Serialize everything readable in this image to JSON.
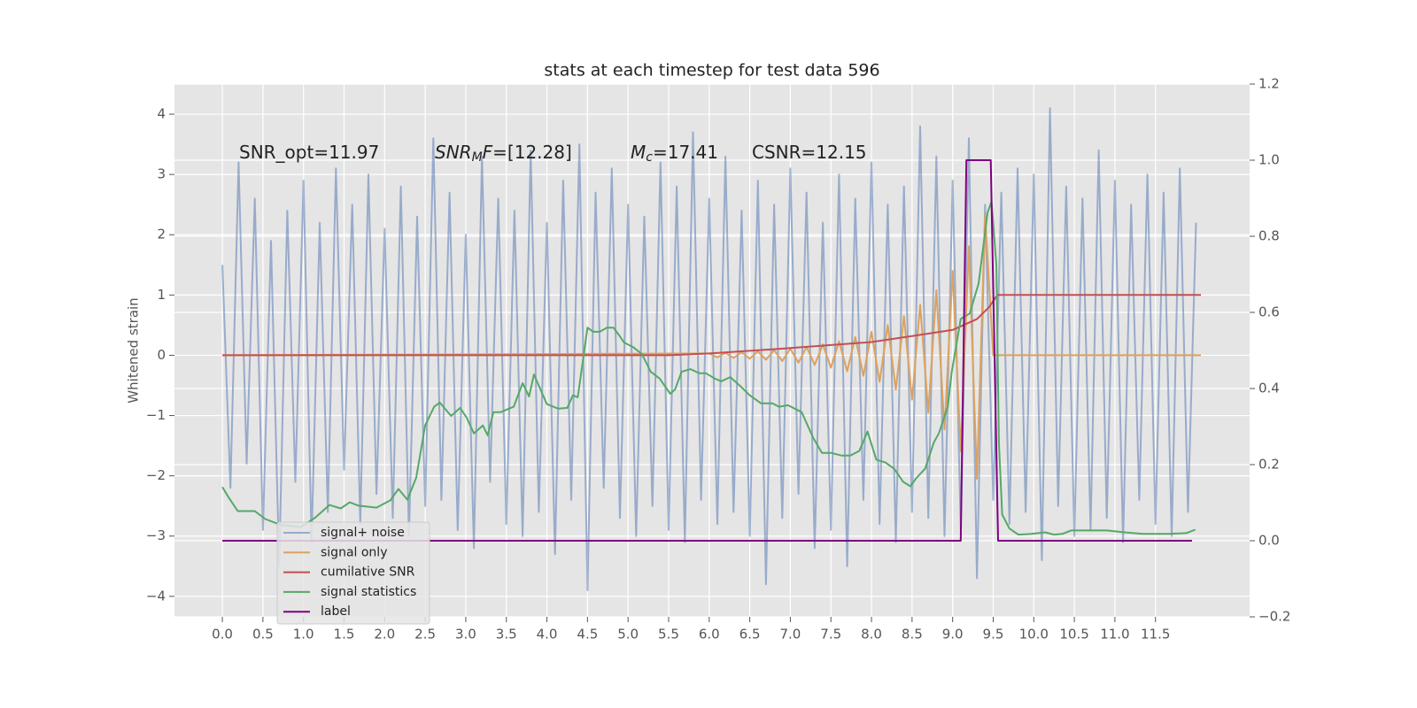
{
  "chart_data": {
    "type": "line",
    "title": "stats at each timestep for test data 596",
    "ylabel": "Whitened strain",
    "xlim": [
      -0.59,
      12.66
    ],
    "ylim": [
      -4.34,
      4.5
    ],
    "y2lim": [
      -0.2,
      1.2
    ],
    "grid": true,
    "background": "#e5e5e5",
    "legend": "lower left",
    "xticks": [
      {
        "value": 0,
        "label": "0.0"
      },
      0.5,
      {
        "value": 1,
        "label": "1.0"
      },
      1.5,
      {
        "value": 2,
        "label": "2.0"
      },
      2.5,
      {
        "value": 3,
        "label": "3.0"
      },
      3.5,
      {
        "value": 4,
        "label": "4.0"
      },
      4.5,
      {
        "value": 5,
        "label": "5.0"
      },
      5.5,
      {
        "value": 6,
        "label": "6.0"
      },
      6.5,
      {
        "value": 7,
        "label": "7.0"
      },
      7.5,
      {
        "value": 8,
        "label": "8.0"
      },
      8.5,
      {
        "value": 9,
        "label": "9.0"
      },
      9.5,
      {
        "value": 10,
        "label": "10.0"
      },
      10.5,
      {
        "value": 11,
        "label": "11.0"
      },
      11.5
    ],
    "yticks": [
      {
        "value": -4,
        "label": "−4"
      },
      {
        "value": -3,
        "label": "−3"
      },
      {
        "value": -2,
        "label": "−2"
      },
      {
        "value": -1,
        "label": "−1"
      },
      0,
      1,
      2,
      3,
      4
    ],
    "y2ticks": [
      {
        "value": -0.2,
        "label": "−0.2"
      },
      {
        "value": 0,
        "label": "0.0"
      },
      0.2,
      0.4,
      0.6,
      0.8,
      {
        "value": 1,
        "label": "1.0"
      },
      1.2
    ],
    "annotations": [
      {
        "parts": [
          {
            "text": "SNR_opt=11.97"
          }
        ]
      },
      {
        "parts": [
          {
            "text": "SNR",
            "style": "italic"
          },
          {
            "text": "M",
            "style": "sub"
          },
          {
            "text": "F",
            "style": "italic"
          },
          {
            "text": "=[12.28]"
          }
        ]
      },
      {
        "parts": [
          {
            "text": "M",
            "style": "italic"
          },
          {
            "text": "c",
            "style": "sub"
          },
          {
            "text": "=17.41"
          }
        ]
      },
      {
        "parts": [
          {
            "text": "CSNR=12.15"
          }
        ]
      }
    ],
    "series": [
      {
        "name": "signal+ noise",
        "color": "#4c72b0",
        "opacity": 0.5,
        "x": [
          0,
          0.1,
          0.2,
          0.3,
          0.4,
          0.5,
          0.6,
          0.7,
          0.8,
          0.9,
          1,
          1.1,
          1.2,
          1.3,
          1.4,
          1.5,
          1.6,
          1.7,
          1.8,
          1.9,
          2,
          2.1,
          2.2,
          2.3,
          2.4,
          2.5,
          2.6,
          2.7,
          2.8,
          2.9,
          3,
          3.1,
          3.2,
          3.3,
          3.4,
          3.5,
          3.6,
          3.7,
          3.8,
          3.9,
          4,
          4.1,
          4.2,
          4.3,
          4.4,
          4.5,
          4.6,
          4.7,
          4.8,
          4.9,
          5,
          5.1,
          5.2,
          5.3,
          5.4,
          5.5,
          5.6,
          5.7,
          5.8,
          5.9,
          6,
          6.1,
          6.2,
          6.3,
          6.4,
          6.5,
          6.6,
          6.7,
          6.8,
          6.9,
          7,
          7.1,
          7.2,
          7.3,
          7.4,
          7.5,
          7.6,
          7.7,
          7.8,
          7.9,
          8,
          8.1,
          8.2,
          8.3,
          8.4,
          8.5,
          8.6,
          8.7,
          8.8,
          8.9,
          9,
          9.1,
          9.2,
          9.3,
          9.4,
          9.5,
          9.6,
          9.7,
          9.8,
          9.9,
          10,
          10.1,
          10.2,
          10.3,
          10.4,
          10.5,
          10.6,
          10.7,
          10.8,
          10.9,
          11,
          11.1,
          11.2,
          11.3,
          11.4,
          11.5,
          11.6,
          11.7,
          11.8,
          11.9,
          12
        ],
        "values": [
          1.5,
          -2.2,
          3.2,
          -1.8,
          2.6,
          -2.9,
          1.9,
          -3.5,
          2.4,
          -2.1,
          2.9,
          -3.1,
          2.2,
          -2.6,
          3.1,
          -1.9,
          2.5,
          -2.8,
          3.0,
          -2.3,
          2.1,
          -2.7,
          2.8,
          -3.0,
          2.3,
          -2.5,
          3.6,
          -2.4,
          2.7,
          -2.9,
          2.0,
          -3.2,
          3.3,
          -2.1,
          2.6,
          -2.8,
          2.4,
          -3.0,
          3.4,
          -2.6,
          2.2,
          -3.3,
          2.9,
          -2.4,
          3.5,
          -3.9,
          2.7,
          -2.2,
          3.1,
          -2.7,
          2.5,
          -3.0,
          2.3,
          -2.5,
          3.2,
          -2.9,
          2.8,
          -3.1,
          3.7,
          -2.4,
          2.6,
          -2.8,
          3.3,
          -2.6,
          2.4,
          -3.0,
          2.9,
          -3.8,
          2.5,
          -2.7,
          3.1,
          -2.3,
          2.7,
          -3.2,
          2.2,
          -2.9,
          3.0,
          -3.5,
          2.6,
          -2.4,
          3.2,
          -2.8,
          2.5,
          -3.1,
          2.8,
          -2.6,
          3.8,
          -2.7,
          3.3,
          -3.0,
          2.9,
          -2.9,
          3.6,
          -3.7,
          2.5,
          -2.4,
          2.7,
          -2.8,
          3.1,
          -2.6,
          3.0,
          -3.4,
          4.1,
          -2.5,
          2.8,
          -3.0,
          2.6,
          -2.9,
          3.4,
          -2.7,
          2.9,
          -3.1,
          2.5,
          -2.4,
          3.0,
          -2.8,
          2.7,
          -3.0,
          3.1,
          -2.6,
          2.2
        ]
      },
      {
        "name": "signal only",
        "color": "#dda15e",
        "x": [
          0,
          6.0,
          6.1,
          6.2,
          6.3,
          6.4,
          6.5,
          6.6,
          6.7,
          6.8,
          6.9,
          7.0,
          7.1,
          7.2,
          7.3,
          7.4,
          7.5,
          7.6,
          7.7,
          7.8,
          7.9,
          8.0,
          8.1,
          8.2,
          8.3,
          8.4,
          8.5,
          8.6,
          8.7,
          8.8,
          8.9,
          9.0,
          9.1,
          9.2,
          9.3,
          9.4,
          9.5,
          12.06
        ],
        "values": [
          0,
          0.03,
          -0.034,
          0.039,
          -0.044,
          0.05,
          -0.057,
          0.065,
          -0.074,
          0.084,
          -0.095,
          0.108,
          -0.123,
          0.14,
          -0.159,
          0.18,
          -0.205,
          0.233,
          -0.265,
          0.301,
          -0.342,
          0.389,
          -0.442,
          0.502,
          -0.571,
          0.649,
          -0.737,
          0.838,
          -0.953,
          1.08,
          -1.23,
          1.4,
          -1.59,
          1.81,
          -2.05,
          2.33,
          0,
          0
        ]
      },
      {
        "name": "cumilative SNR",
        "color": "#c44e52",
        "x": [
          0,
          5.5,
          6.0,
          7.0,
          8.0,
          8.5,
          9.0,
          9.3,
          9.45,
          9.55,
          12.06
        ],
        "values": [
          0,
          0,
          0.03,
          0.12,
          0.22,
          0.32,
          0.42,
          0.6,
          0.8,
          1,
          1
        ]
      },
      {
        "name": "signal statistics",
        "color": "#55a868",
        "axis": "y2",
        "x": [
          0,
          0.08,
          0.19,
          0.4,
          0.53,
          0.73,
          0.97,
          1.14,
          1.32,
          1.46,
          1.57,
          1.68,
          1.9,
          2.07,
          2.17,
          2.28,
          2.39,
          2.5,
          2.61,
          2.68,
          2.82,
          2.93,
          3.01,
          3.1,
          3.21,
          3.27,
          3.34,
          3.43,
          3.59,
          3.7,
          3.78,
          3.84,
          4.0,
          4.14,
          4.25,
          4.32,
          4.38,
          4.5,
          4.57,
          4.65,
          4.74,
          4.82,
          4.9,
          4.95,
          5.06,
          5.17,
          5.28,
          5.39,
          5.52,
          5.58,
          5.66,
          5.77,
          5.88,
          5.96,
          6.07,
          6.15,
          6.26,
          6.38,
          6.5,
          6.64,
          6.78,
          6.86,
          6.97,
          7.14,
          7.28,
          7.39,
          7.5,
          7.63,
          7.74,
          7.85,
          7.95,
          8.06,
          8.17,
          8.28,
          8.39,
          8.48,
          8.55,
          8.66,
          8.77,
          8.83,
          8.94,
          8.99,
          9.1,
          9.21,
          9.32,
          9.43,
          9.48,
          9.54,
          9.57,
          9.61,
          9.7,
          9.81,
          9.97,
          10.14,
          10.25,
          10.35,
          10.46,
          10.9,
          11.12,
          11.34,
          11.66,
          11.88,
          11.99
        ],
        "values": [
          0.141,
          0.113,
          0.078,
          0.078,
          0.057,
          0.041,
          0.036,
          0.06,
          0.094,
          0.085,
          0.101,
          0.092,
          0.087,
          0.106,
          0.136,
          0.108,
          0.166,
          0.303,
          0.352,
          0.363,
          0.328,
          0.349,
          0.324,
          0.282,
          0.303,
          0.277,
          0.338,
          0.338,
          0.352,
          0.414,
          0.379,
          0.437,
          0.359,
          0.347,
          0.349,
          0.382,
          0.377,
          0.56,
          0.549,
          0.549,
          0.56,
          0.56,
          0.537,
          0.521,
          0.509,
          0.491,
          0.444,
          0.426,
          0.386,
          0.398,
          0.444,
          0.451,
          0.44,
          0.44,
          0.426,
          0.419,
          0.43,
          0.407,
          0.382,
          0.361,
          0.361,
          0.352,
          0.356,
          0.338,
          0.271,
          0.231,
          0.231,
          0.224,
          0.224,
          0.236,
          0.287,
          0.213,
          0.206,
          0.189,
          0.155,
          0.143,
          0.164,
          0.189,
          0.259,
          0.282,
          0.352,
          0.444,
          0.583,
          0.597,
          0.676,
          0.862,
          0.892,
          0.722,
          0.259,
          0.069,
          0.032,
          0.016,
          0.018,
          0.022,
          0.016,
          0.018,
          0.027,
          0.027,
          0.022,
          0.018,
          0.018,
          0.02,
          0.029
        ]
      },
      {
        "name": "label",
        "color": "#800080",
        "axis": "y2",
        "x": [
          0,
          9.1,
          9.17,
          9.47,
          9.56,
          11.95
        ],
        "values": [
          0,
          0,
          1,
          1,
          0,
          0
        ]
      }
    ]
  }
}
